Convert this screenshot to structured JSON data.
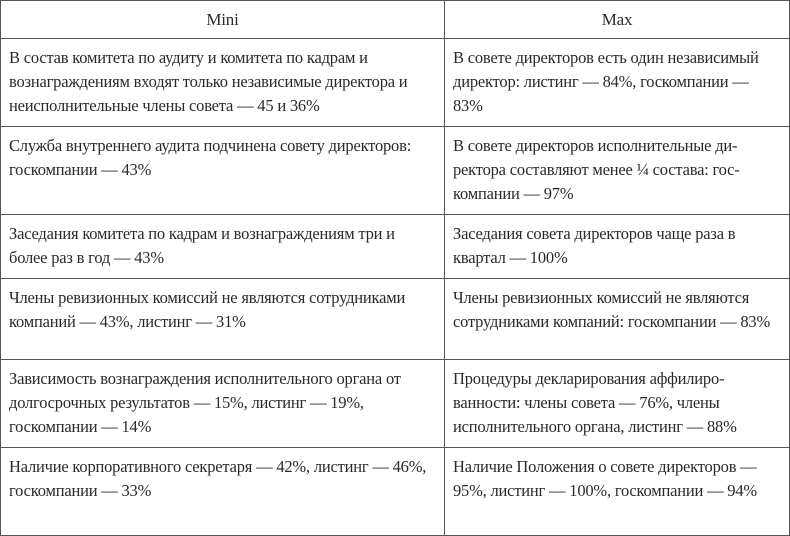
{
  "table": {
    "headers": [
      "Mini",
      "Max"
    ],
    "rows": [
      {
        "mini": "В состав комитета по аудиту и комитета по кадрам и вознаграждениям входят только независимые директо­ра и неисполнительные члены совета — 45 и 36%",
        "max": "В совете директоров есть один независи­мый директор: листинг — 84%, госком­пании — 83%"
      },
      {
        "mini": "Служба внутреннего аудита подчинена совету директо­ров: госкомпании — 43%",
        "max": "В совете директоров исполнительные ди­ректора составляют менее ¼ состава: гос­компании — 97%"
      },
      {
        "mini": "Заседания комитета по кадрам и вознаграждениям три и более раз в год — 43%",
        "max": "Заседания совета директоров чаще раза в квартал — 100%"
      },
      {
        "mini": "Члены ревизионных комиссий не являются сотрудни­ками компаний — 43%, листинг — 31%",
        "max": "Члены ревизионных комиссий не являют­ся сотрудниками компаний: госкомпании — 83%"
      },
      {
        "mini": "Зависимость вознаграждения исполнительного органа от долгосрочных результатов — 15%, листинг — 19%, госкомпании — 14%",
        "max": "Процедуры декларирования аффилиро­ванности: члены совета — 76%, члены исполнительного органа, листинг — 88%"
      },
      {
        "mini": "Наличие корпоративного секретаря — 42%, листинг — 46%, госкомпании — 33%",
        "max": "Наличие Положения о совете директоров — 95%, листинг — 100%, госкомпании — 94%"
      }
    ]
  }
}
